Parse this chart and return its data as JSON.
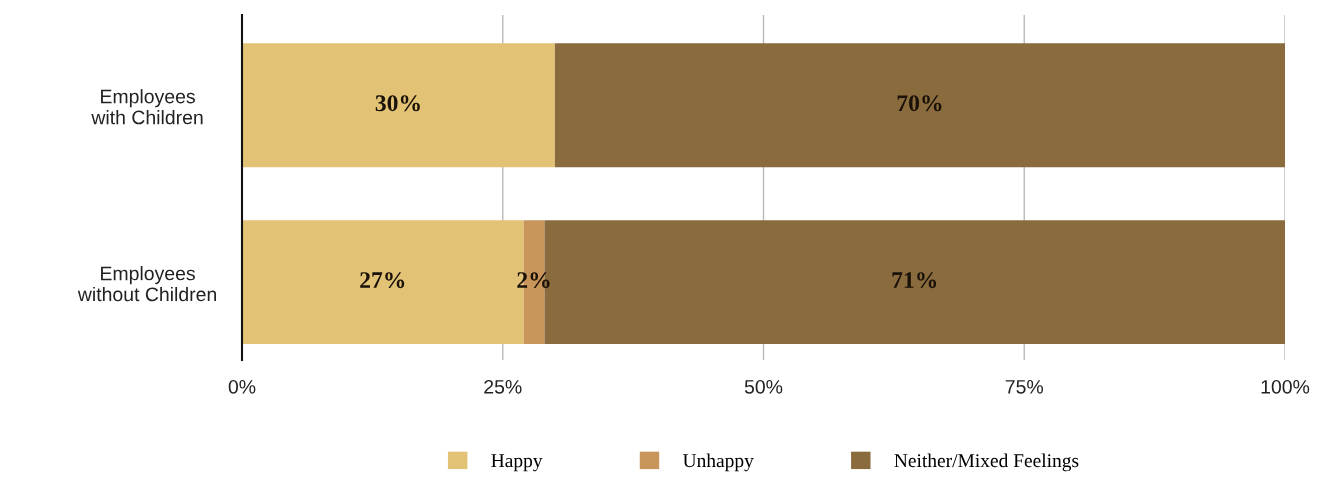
{
  "chart_data": {
    "type": "bar",
    "orientation": "horizontal",
    "stacked": true,
    "categories": [
      "Employees\nwith Children",
      "Employees\nwithout Children"
    ],
    "series": [
      {
        "name": "Happy",
        "color": "#e2c275",
        "values": [
          30,
          27
        ],
        "value_labels": [
          "30%",
          "27%"
        ]
      },
      {
        "name": "Unhappy",
        "color": "#c8955a",
        "values": [
          null,
          2
        ],
        "value_labels": [
          null,
          "2%"
        ]
      },
      {
        "name": "Neither/Mixed Feelings",
        "color": "#8a6b3e",
        "values": [
          70,
          71
        ],
        "value_labels": [
          "70%",
          "71%"
        ]
      }
    ],
    "xlim": [
      0,
      100
    ],
    "xticks": [
      {
        "value": 0,
        "label": "0%"
      },
      {
        "value": 25,
        "label": "25%"
      },
      {
        "value": 50,
        "label": "50%"
      },
      {
        "value": 75,
        "label": "75%"
      },
      {
        "value": 100,
        "label": "100%"
      }
    ],
    "grid": "x",
    "legend": "bottom"
  }
}
